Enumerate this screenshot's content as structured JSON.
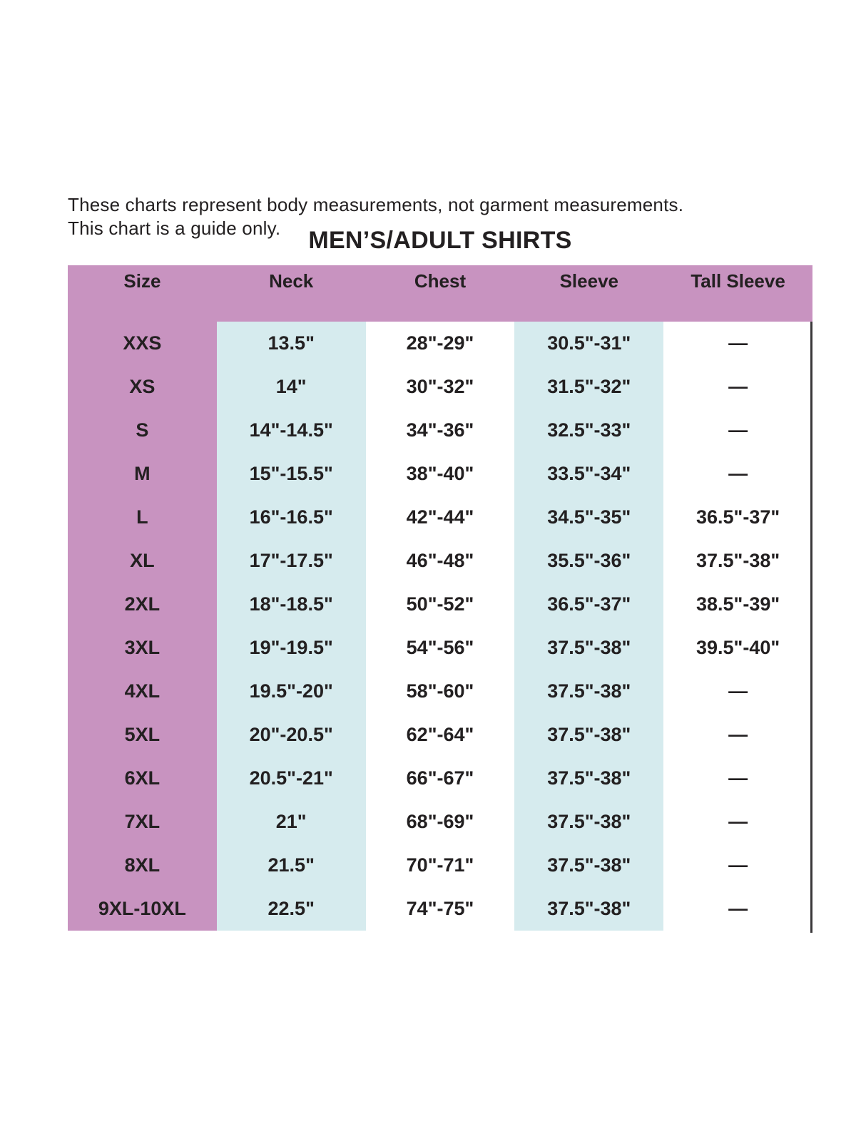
{
  "note": {
    "line1": "These charts represent body measurements, not garment measurements.",
    "line2": "This chart is a guide only."
  },
  "title": "MEN’S/ADULT SHIRTS",
  "colors": {
    "header_pink": "#c893c0",
    "stripe_blue": "#d6ebee",
    "text_ink": "#232021",
    "border_line": "#3a383a",
    "background": "#ffffff"
  },
  "chart_data": {
    "type": "table",
    "title": "MEN’S/ADULT SHIRTS",
    "columns": [
      "Size",
      "Neck",
      "Chest",
      "Sleeve",
      "Tall Sleeve"
    ],
    "rows": [
      [
        "XXS",
        "13.5\"",
        "28\"-29\"",
        "30.5\"-31\"",
        "—"
      ],
      [
        "XS",
        "14\"",
        "30\"-32\"",
        "31.5\"-32\"",
        "—"
      ],
      [
        "S",
        "14\"-14.5\"",
        "34\"-36\"",
        "32.5\"-33\"",
        "—"
      ],
      [
        "M",
        "15\"-15.5\"",
        "38\"-40\"",
        "33.5\"-34\"",
        "—"
      ],
      [
        "L",
        "16\"-16.5\"",
        "42\"-44\"",
        "34.5\"-35\"",
        "36.5\"-37\""
      ],
      [
        "XL",
        "17\"-17.5\"",
        "46\"-48\"",
        "35.5\"-36\"",
        "37.5\"-38\""
      ],
      [
        "2XL",
        "18\"-18.5\"",
        "50\"-52\"",
        "36.5\"-37\"",
        "38.5\"-39\""
      ],
      [
        "3XL",
        "19\"-19.5\"",
        "54\"-56\"",
        "37.5\"-38\"",
        "39.5\"-40\""
      ],
      [
        "4XL",
        "19.5\"-20\"",
        "58\"-60\"",
        "37.5\"-38\"",
        "—"
      ],
      [
        "5XL",
        "20\"-20.5\"",
        "62\"-64\"",
        "37.5\"-38\"",
        "—"
      ],
      [
        "6XL",
        "20.5\"-21\"",
        "66\"-67\"",
        "37.5\"-38\"",
        "—"
      ],
      [
        "7XL",
        "21\"",
        "68\"-69\"",
        "37.5\"-38\"",
        "—"
      ],
      [
        "8XL",
        "21.5\"",
        "70\"-71\"",
        "37.5\"-38\"",
        "—"
      ],
      [
        "9XL-10XL",
        "22.5\"",
        "74\"-75\"",
        "37.5\"-38\"",
        "—"
      ]
    ]
  }
}
